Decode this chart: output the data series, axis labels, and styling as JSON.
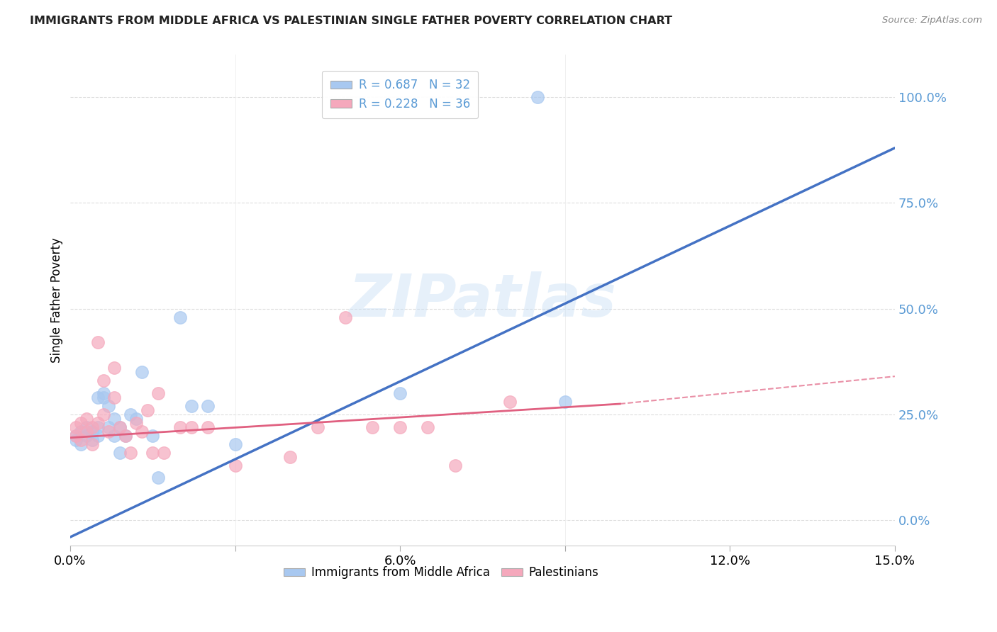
{
  "title": "IMMIGRANTS FROM MIDDLE AFRICA VS PALESTINIAN SINGLE FATHER POVERTY CORRELATION CHART",
  "source": "Source: ZipAtlas.com",
  "ylabel": "Single Father Poverty",
  "legend_label_1": "Immigrants from Middle Africa",
  "legend_label_2": "Palestinians",
  "r1": 0.687,
  "n1": 32,
  "r2": 0.228,
  "n2": 36,
  "color1": "#a8c8f0",
  "color2": "#f5a8bc",
  "line1_color": "#4472c4",
  "line2_color": "#e06080",
  "xlim": [
    0,
    0.15
  ],
  "ylim": [
    -0.06,
    1.1
  ],
  "yticks": [
    0.0,
    0.25,
    0.5,
    0.75,
    1.0
  ],
  "ytick_labels": [
    "0.0%",
    "25.0%",
    "50.0%",
    "75.0%",
    "100.0%"
  ],
  "xticks": [
    0.0,
    0.03,
    0.06,
    0.09,
    0.12,
    0.15
  ],
  "xtick_labels": [
    "0.0%",
    "",
    "6.0%",
    "",
    "12.0%",
    "15.0%"
  ],
  "background_color": "#ffffff",
  "watermark": "ZIPatlas",
  "line1_x0": 0.0,
  "line1_y0": -0.04,
  "line1_x1": 0.15,
  "line1_y1": 0.88,
  "line2_x0": 0.0,
  "line2_y0": 0.195,
  "line2_x1": 0.1,
  "line2_y1": 0.275,
  "line2_dash_x0": 0.1,
  "line2_dash_y0": 0.275,
  "line2_dash_x1": 0.15,
  "line2_dash_y1": 0.34,
  "scatter1_x": [
    0.001,
    0.001,
    0.002,
    0.002,
    0.003,
    0.003,
    0.004,
    0.004,
    0.005,
    0.005,
    0.005,
    0.006,
    0.006,
    0.007,
    0.007,
    0.008,
    0.008,
    0.009,
    0.009,
    0.01,
    0.011,
    0.012,
    0.013,
    0.015,
    0.016,
    0.02,
    0.022,
    0.025,
    0.03,
    0.06,
    0.085,
    0.09
  ],
  "scatter1_y": [
    0.2,
    0.19,
    0.21,
    0.18,
    0.22,
    0.2,
    0.19,
    0.21,
    0.22,
    0.2,
    0.29,
    0.3,
    0.29,
    0.27,
    0.22,
    0.24,
    0.2,
    0.22,
    0.16,
    0.2,
    0.25,
    0.24,
    0.35,
    0.2,
    0.1,
    0.48,
    0.27,
    0.27,
    0.18,
    0.3,
    1.0,
    0.28
  ],
  "scatter2_x": [
    0.001,
    0.001,
    0.002,
    0.002,
    0.003,
    0.003,
    0.004,
    0.004,
    0.005,
    0.005,
    0.006,
    0.006,
    0.007,
    0.008,
    0.008,
    0.009,
    0.01,
    0.011,
    0.012,
    0.013,
    0.014,
    0.015,
    0.016,
    0.017,
    0.02,
    0.022,
    0.025,
    0.03,
    0.04,
    0.045,
    0.05,
    0.055,
    0.06,
    0.065,
    0.07,
    0.08
  ],
  "scatter2_y": [
    0.2,
    0.22,
    0.19,
    0.23,
    0.21,
    0.24,
    0.22,
    0.18,
    0.23,
    0.42,
    0.25,
    0.33,
    0.21,
    0.36,
    0.29,
    0.22,
    0.2,
    0.16,
    0.23,
    0.21,
    0.26,
    0.16,
    0.3,
    0.16,
    0.22,
    0.22,
    0.22,
    0.13,
    0.15,
    0.22,
    0.48,
    0.22,
    0.22,
    0.22,
    0.13,
    0.28
  ]
}
